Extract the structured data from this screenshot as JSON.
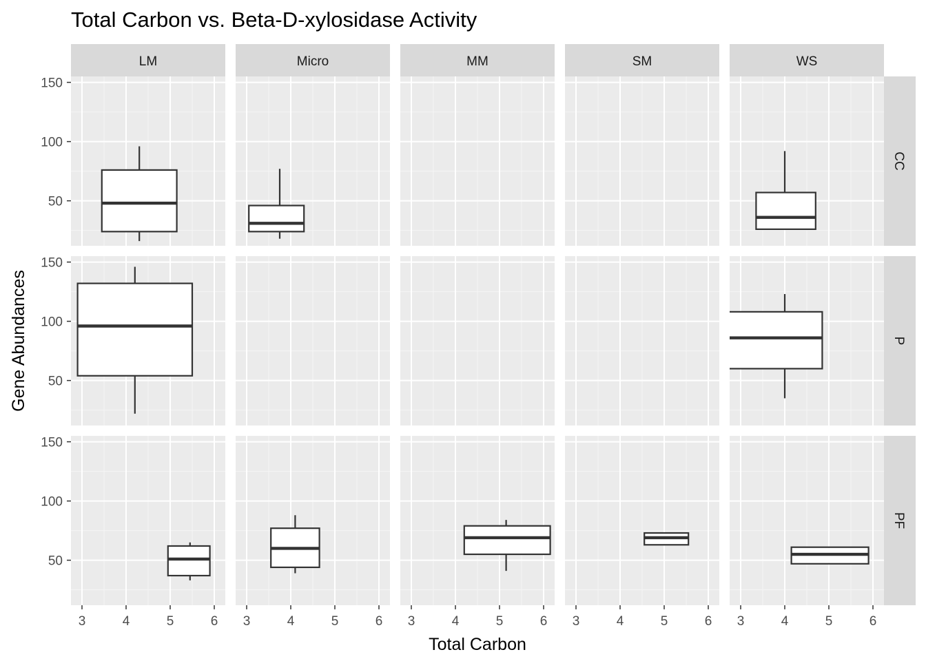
{
  "chart_data": {
    "type": "boxplot",
    "title": "Total Carbon vs. Beta-D-xylosidase Activity",
    "xlabel": "Total Carbon",
    "ylabel": "Gene Abundances",
    "xlim": [
      2.75,
      6.25
    ],
    "ylim": [
      12,
      155
    ],
    "x_ticks": [
      3,
      4,
      5,
      6
    ],
    "y_ticks": [
      50,
      100,
      150
    ],
    "grid": true,
    "facet_columns": [
      "LM",
      "Micro",
      "MM",
      "SM",
      "WS"
    ],
    "facet_rows": [
      "CC",
      "P",
      "PF"
    ],
    "boxes": [
      {
        "row": "CC",
        "col": "LM",
        "xmin": 3.45,
        "xmax": 5.15,
        "xcenter": 4.3,
        "lower_whisker": 16,
        "q1": 24,
        "median": 48,
        "q3": 76,
        "upper_whisker": 96
      },
      {
        "row": "CC",
        "col": "Micro",
        "xmin": 3.05,
        "xmax": 4.3,
        "xcenter": 3.75,
        "lower_whisker": 18,
        "q1": 24,
        "median": 31,
        "q3": 46,
        "upper_whisker": 77
      },
      {
        "row": "CC",
        "col": "WS",
        "xmin": 3.35,
        "xmax": 4.7,
        "xcenter": 4.0,
        "lower_whisker": 26,
        "q1": 26,
        "median": 36,
        "q3": 57,
        "upper_whisker": 92
      },
      {
        "row": "P",
        "col": "LM",
        "xmin": 2.9,
        "xmax": 5.5,
        "xcenter": 4.2,
        "lower_whisker": 22,
        "q1": 54,
        "median": 96,
        "q3": 132,
        "upper_whisker": 146
      },
      {
        "row": "P",
        "col": "WS",
        "xmin": 2.65,
        "xmax": 4.85,
        "xcenter": 4.0,
        "lower_whisker": 35,
        "q1": 60,
        "median": 86,
        "q3": 108,
        "upper_whisker": 123
      },
      {
        "row": "PF",
        "col": "LM",
        "xmin": 4.95,
        "xmax": 5.9,
        "xcenter": 5.45,
        "lower_whisker": 33,
        "q1": 37,
        "median": 51,
        "q3": 62,
        "upper_whisker": 65
      },
      {
        "row": "PF",
        "col": "Micro",
        "xmin": 3.55,
        "xmax": 4.65,
        "xcenter": 4.1,
        "lower_whisker": 39,
        "q1": 44,
        "median": 60,
        "q3": 77,
        "upper_whisker": 88
      },
      {
        "row": "PF",
        "col": "MM",
        "xmin": 4.2,
        "xmax": 6.15,
        "xcenter": 5.15,
        "lower_whisker": 41,
        "q1": 55,
        "median": 69,
        "q3": 79,
        "upper_whisker": 84
      },
      {
        "row": "PF",
        "col": "SM",
        "xmin": 4.55,
        "xmax": 5.55,
        "xcenter": 5.05,
        "lower_whisker": 63,
        "q1": 63,
        "median": 69,
        "q3": 73,
        "upper_whisker": 73
      },
      {
        "row": "PF",
        "col": "WS",
        "xmin": 4.15,
        "xmax": 5.9,
        "xcenter": 5.0,
        "lower_whisker": 47,
        "q1": 47,
        "median": 55,
        "q3": 61,
        "upper_whisker": 61
      }
    ],
    "colors": {
      "panel_background": "#ebebeb",
      "grid_major": "#ffffff",
      "grid_minor": "#f5f5f5",
      "strip_background": "#d9d9d9",
      "box_fill": "#ffffff",
      "box_line": "#333333",
      "tick_text": "#4d4d4d"
    }
  }
}
